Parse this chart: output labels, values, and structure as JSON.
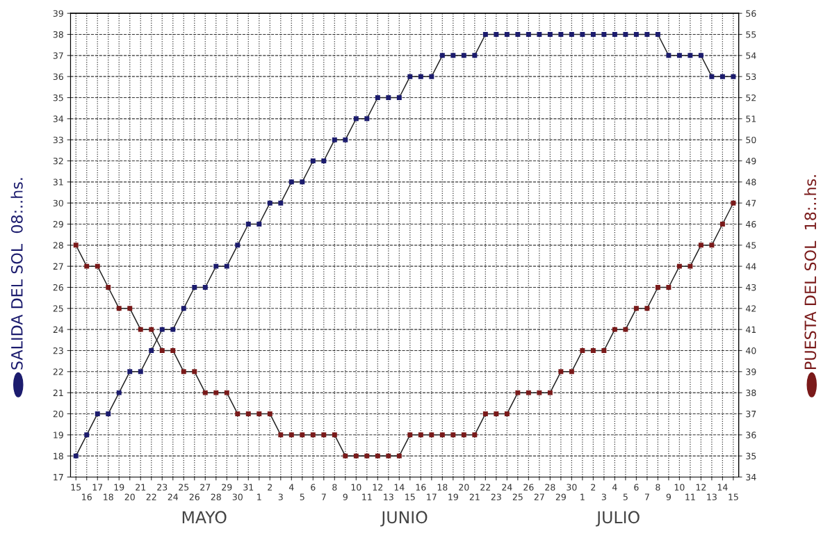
{
  "chart_data": {
    "type": "line",
    "categories": [
      "15",
      "16",
      "17",
      "18",
      "19",
      "20",
      "21",
      "22",
      "23",
      "24",
      "25",
      "26",
      "27",
      "28",
      "29",
      "30",
      "31",
      "1",
      "2",
      "3",
      "4",
      "5",
      "6",
      "7",
      "8",
      "9",
      "10",
      "11",
      "12",
      "13",
      "14",
      "15",
      "16",
      "17",
      "18",
      "19",
      "20",
      "21",
      "22",
      "23",
      "24",
      "25",
      "26",
      "27",
      "28",
      "29",
      "30",
      "1",
      "2",
      "3",
      "4",
      "5",
      "6",
      "7",
      "8",
      "9",
      "10",
      "11",
      "12",
      "13",
      "14",
      "15"
    ],
    "series": [
      {
        "name": "SALIDA DEL SOL  08:..hs.",
        "color": "#1c1c6e",
        "values": [
          18,
          19,
          20,
          20,
          21,
          22,
          22,
          23,
          24,
          24,
          25,
          26,
          26,
          27,
          27,
          28,
          29,
          29,
          30,
          30,
          31,
          31,
          32,
          32,
          33,
          33,
          34,
          34,
          35,
          35,
          35,
          36,
          36,
          36,
          37,
          37,
          37,
          37,
          38,
          38,
          38,
          38,
          38,
          38,
          38,
          38,
          38,
          38,
          38,
          38,
          38,
          38,
          38,
          38,
          38,
          37,
          37,
          37,
          37,
          36,
          36,
          36
        ]
      },
      {
        "name": "PUESTA DEL SOL  18:..hs.",
        "color": "#7a1a1a",
        "axis": "y2",
        "values": [
          45,
          44,
          44,
          43,
          42,
          42,
          41,
          41,
          40,
          40,
          39,
          39,
          38,
          38,
          38,
          37,
          37,
          37,
          37,
          36,
          36,
          36,
          36,
          36,
          36,
          35,
          35,
          35,
          35,
          35,
          35,
          36,
          36,
          36,
          36,
          36,
          36,
          36,
          37,
          37,
          37,
          38,
          38,
          38,
          38,
          39,
          39,
          40,
          40,
          40,
          41,
          41,
          42,
          42,
          43,
          43,
          44,
          44,
          45,
          45,
          46,
          47
        ]
      }
    ],
    "ylim": [
      17,
      39
    ],
    "yticks": [
      17,
      18,
      19,
      20,
      21,
      22,
      23,
      24,
      25,
      26,
      27,
      28,
      29,
      30,
      31,
      32,
      33,
      34,
      35,
      36,
      37,
      38,
      39
    ],
    "y2lim": [
      34,
      56
    ],
    "y2ticks": [
      34,
      35,
      36,
      37,
      38,
      39,
      40,
      41,
      42,
      43,
      44,
      45,
      46,
      47,
      48,
      49,
      50,
      51,
      52,
      53,
      54,
      55,
      56
    ],
    "annotations": [
      "MAYO",
      "JUNIO",
      "JULIO"
    ],
    "grid": true,
    "marker": "square",
    "line_style": "solid"
  }
}
